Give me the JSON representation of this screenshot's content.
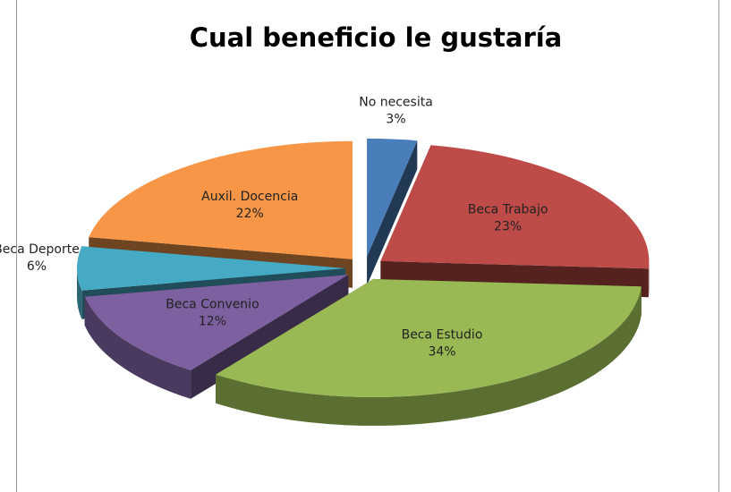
{
  "chart_data": {
    "type": "pie",
    "title": "Cual beneficio le gustaría",
    "categories": [
      "No necesita",
      "Beca Trabajo",
      "Beca Estudio",
      "Beca Convenio",
      "Beca Deporte",
      "Auxil. Docencia"
    ],
    "values": [
      3,
      23,
      34,
      12,
      6,
      22
    ],
    "value_labels": [
      "3%",
      "23%",
      "34%",
      "12%",
      "6%",
      "22%"
    ],
    "colors": [
      "#4a7ebb",
      "#be4b48",
      "#98b954",
      "#7d60a0",
      "#46aac5",
      "#f79646"
    ]
  }
}
